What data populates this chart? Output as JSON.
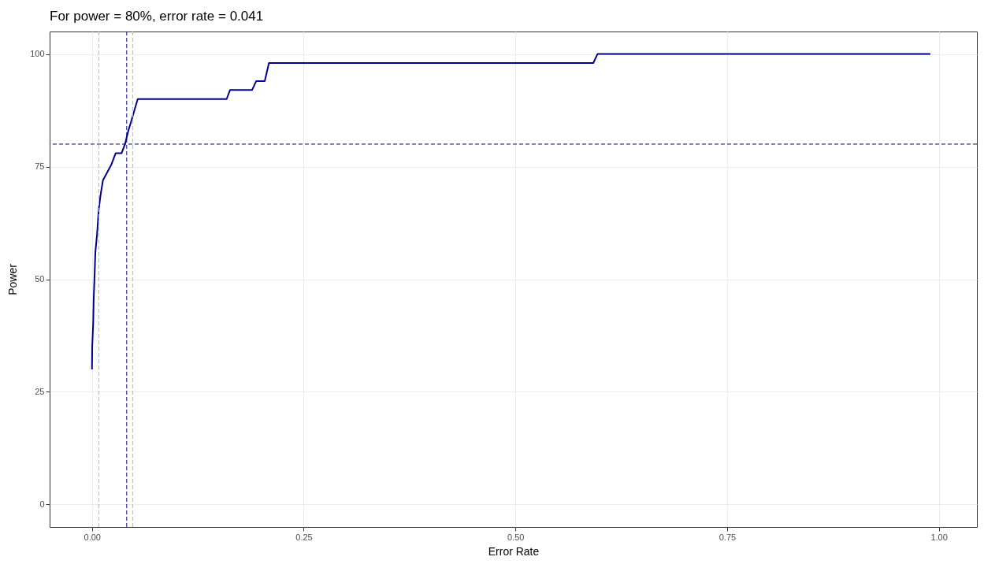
{
  "chart_data": {
    "type": "line",
    "title": "For power = 80%, error rate = 0.041",
    "xlabel": "Error Rate",
    "ylabel": "Power",
    "x": [
      0.0,
      0.0003,
      0.0015,
      0.002,
      0.003,
      0.004,
      0.006,
      0.008,
      0.01,
      0.013,
      0.023,
      0.028,
      0.035,
      0.039,
      0.043,
      0.047,
      0.054,
      0.159,
      0.163,
      0.189,
      0.194,
      0.204,
      0.209,
      0.592,
      0.597,
      0.99
    ],
    "series": [
      {
        "color": "#00008b",
        "values": [
          30,
          35,
          40.5,
          45.5,
          50.5,
          56,
          60,
          65.5,
          68.5,
          72,
          75.5,
          78,
          78,
          80,
          83,
          85.5,
          90,
          90,
          92,
          92,
          94,
          94,
          98,
          98,
          100,
          100
        ]
      }
    ],
    "xlim": [
      -0.05,
      1.045
    ],
    "xticks": [
      {
        "value": 0,
        "label": "0.00"
      },
      0.25,
      {
        "value": 0.5,
        "label": "0.50"
      },
      0.75,
      {
        "value": 1,
        "label": "1.00"
      }
    ],
    "ylim": [
      -5,
      105
    ],
    "yticks": [
      0,
      25,
      50,
      75,
      100
    ],
    "grid": true,
    "ref_lines": [
      {
        "axis": "x",
        "value": 0.008,
        "color": "#b3b3b3",
        "line_style": "dashed"
      },
      {
        "axis": "x",
        "value": 0.048,
        "color": "#b3b3b3",
        "line_style": "dashed"
      },
      {
        "axis": "x",
        "value": 0.041,
        "color": "#00008b",
        "line_style": "dashed"
      },
      {
        "axis": "y",
        "value": 80,
        "color": "#00008b",
        "line_style": "dashed"
      }
    ]
  }
}
